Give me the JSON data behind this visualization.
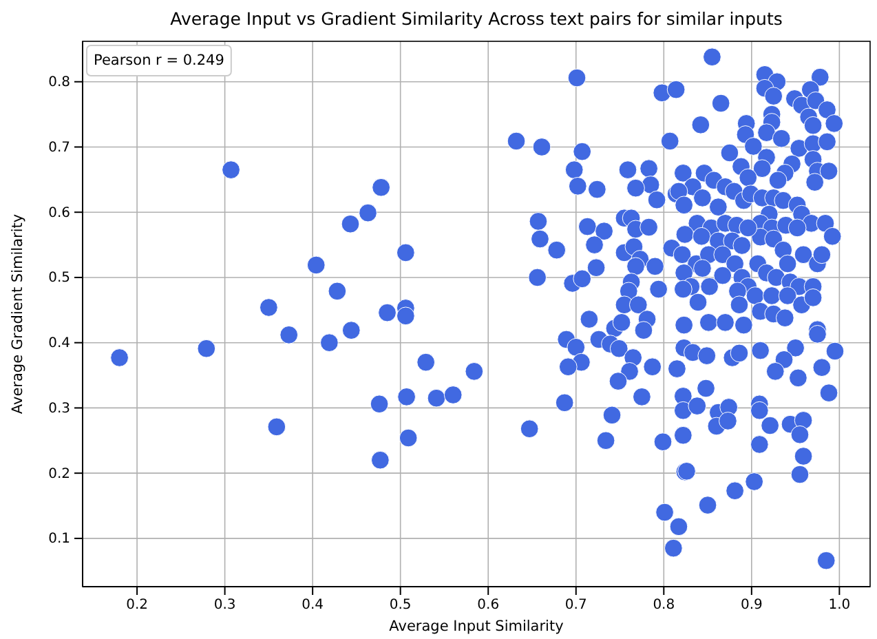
{
  "chart_data": {
    "type": "scatter",
    "title": "Average Input vs Gradient Similarity Across text pairs for similar inputs",
    "xlabel": "Average Input Similarity",
    "ylabel": "Average Gradient Similarity",
    "annotations": [
      "Pearson r = 0.249"
    ],
    "xlim": [
      0.138,
      1.035
    ],
    "ylim": [
      0.026,
      0.862
    ],
    "xticks": [
      {
        "value": 0.2,
        "label": "0.2"
      },
      {
        "value": 0.3,
        "label": "0.3"
      },
      {
        "value": 0.4,
        "label": "0.4"
      },
      {
        "value": 0.5,
        "label": "0.5"
      },
      {
        "value": 0.6,
        "label": "0.6"
      },
      {
        "value": 0.7,
        "label": "0.7"
      },
      {
        "value": 0.8,
        "label": "0.8"
      },
      {
        "value": 0.9,
        "label": "0.9"
      },
      {
        "value": 1.0,
        "label": "1.0"
      }
    ],
    "yticks": [
      0.1,
      0.2,
      0.3,
      0.4,
      0.5,
      0.6,
      0.7,
      0.8
    ],
    "grid": true,
    "marker": "circle",
    "series": [
      {
        "color": "#4169e1",
        "x": [
          0.18,
          0.279,
          0.307,
          0.35,
          0.359,
          0.373,
          0.404,
          0.419,
          0.428,
          0.443,
          0.444,
          0.463,
          0.478,
          0.476,
          0.477,
          0.485,
          0.506,
          0.506,
          0.506,
          0.507,
          0.509,
          0.529,
          0.541,
          0.56,
          0.584,
          0.701,
          0.798,
          0.814,
          0.632,
          0.661,
          0.707,
          0.807,
          0.698,
          0.702,
          0.724,
          0.759,
          0.783,
          0.785,
          0.792,
          0.768,
          0.814,
          0.657,
          0.659,
          0.678,
          0.713,
          0.732,
          0.721,
          0.755,
          0.763,
          0.768,
          0.783,
          0.755,
          0.766,
          0.773,
          0.768,
          0.809,
          0.79,
          0.794,
          0.656,
          0.696,
          0.707,
          0.723,
          0.763,
          0.76,
          0.755,
          0.771,
          0.715,
          0.781,
          0.777,
          0.744,
          0.752,
          0.689,
          0.7,
          0.706,
          0.691,
          0.726,
          0.739,
          0.749,
          0.765,
          0.761,
          0.748,
          0.787,
          0.775,
          0.687,
          0.741,
          0.647,
          0.734,
          0.799,
          0.824,
          0.801,
          0.817,
          0.811,
          0.855,
          0.915,
          0.929,
          0.915,
          0.925,
          0.978,
          0.967,
          0.949,
          0.957,
          0.973,
          0.986,
          0.965,
          0.994,
          0.97,
          0.865,
          0.842,
          0.894,
          0.893,
          0.923,
          0.923,
          0.917,
          0.934,
          0.954,
          0.97,
          0.986,
          0.875,
          0.902,
          0.917,
          0.912,
          0.946,
          0.938,
          0.93,
          0.97,
          0.975,
          0.988,
          0.972,
          0.888,
          0.896,
          0.846,
          0.857,
          0.87,
          0.88,
          0.891,
          0.899,
          0.822,
          0.833,
          0.817,
          0.844,
          0.823,
          0.862,
          0.912,
          0.925,
          0.936,
          0.952,
          0.957,
          0.968,
          0.984,
          0.992,
          0.92,
          0.91,
          0.923,
          0.939,
          0.952,
          0.91,
          0.925,
          0.838,
          0.854,
          0.87,
          0.883,
          0.896,
          0.824,
          0.843,
          0.862,
          0.878,
          0.889,
          0.821,
          0.837,
          0.851,
          0.867,
          0.936,
          0.941,
          0.959,
          0.975,
          0.98,
          0.907,
          0.917,
          0.928,
          0.881,
          0.889,
          0.896,
          0.867,
          0.844,
          0.823,
          0.944,
          0.954,
          0.97,
          0.831,
          0.852,
          0.884,
          0.904,
          0.923,
          0.941,
          0.957,
          0.97,
          0.839,
          0.886,
          0.91,
          0.925,
          0.938,
          0.851,
          0.87,
          0.891,
          0.823,
          0.975,
          0.975,
          0.823,
          0.833,
          0.849,
          0.878,
          0.886,
          0.91,
          0.95,
          0.937,
          0.927,
          0.953,
          0.98,
          0.995,
          0.815,
          0.988,
          0.848,
          0.822,
          0.822,
          0.838,
          0.862,
          0.86,
          0.874,
          0.873,
          0.909,
          0.909,
          0.921,
          0.944,
          0.959,
          0.955,
          0.822,
          0.909,
          0.959,
          0.955,
          0.826,
          0.903,
          0.881,
          0.85,
          0.985,
          0.822
        ],
        "values": [
          0.377,
          0.391,
          0.665,
          0.454,
          0.271,
          0.412,
          0.519,
          0.4,
          0.479,
          0.582,
          0.419,
          0.599,
          0.638,
          0.306,
          0.22,
          0.446,
          0.538,
          0.453,
          0.441,
          0.317,
          0.254,
          0.37,
          0.315,
          0.32,
          0.356,
          0.806,
          0.783,
          0.788,
          0.709,
          0.7,
          0.693,
          0.709,
          0.665,
          0.64,
          0.635,
          0.665,
          0.667,
          0.642,
          0.619,
          0.637,
          0.628,
          0.586,
          0.559,
          0.542,
          0.578,
          0.571,
          0.55,
          0.591,
          0.591,
          0.574,
          0.577,
          0.538,
          0.547,
          0.528,
          0.517,
          0.545,
          0.517,
          0.482,
          0.5,
          0.491,
          0.498,
          0.515,
          0.493,
          0.479,
          0.458,
          0.458,
          0.436,
          0.436,
          0.419,
          0.422,
          0.431,
          0.405,
          0.393,
          0.37,
          0.363,
          0.405,
          0.398,
          0.391,
          0.377,
          0.356,
          0.341,
          0.363,
          0.317,
          0.308,
          0.289,
          0.268,
          0.25,
          0.248,
          0.202,
          0.14,
          0.118,
          0.085,
          0.838,
          0.811,
          0.8,
          0.79,
          0.778,
          0.807,
          0.788,
          0.774,
          0.764,
          0.771,
          0.757,
          0.746,
          0.736,
          0.733,
          0.767,
          0.734,
          0.736,
          0.719,
          0.75,
          0.738,
          0.722,
          0.713,
          0.698,
          0.705,
          0.708,
          0.691,
          0.701,
          0.684,
          0.667,
          0.674,
          0.66,
          0.649,
          0.681,
          0.663,
          0.663,
          0.646,
          0.67,
          0.653,
          0.66,
          0.649,
          0.639,
          0.632,
          0.618,
          0.628,
          0.66,
          0.639,
          0.632,
          0.622,
          0.611,
          0.608,
          0.622,
          0.622,
          0.618,
          0.611,
          0.597,
          0.583,
          0.583,
          0.563,
          0.597,
          0.583,
          0.576,
          0.58,
          0.576,
          0.562,
          0.559,
          0.583,
          0.576,
          0.583,
          0.58,
          0.576,
          0.566,
          0.563,
          0.556,
          0.556,
          0.549,
          0.535,
          0.521,
          0.535,
          0.535,
          0.542,
          0.521,
          0.535,
          0.521,
          0.535,
          0.521,
          0.507,
          0.5,
          0.521,
          0.5,
          0.486,
          0.503,
          0.514,
          0.507,
          0.493,
          0.486,
          0.486,
          0.486,
          0.486,
          0.479,
          0.472,
          0.472,
          0.472,
          0.458,
          0.469,
          0.462,
          0.458,
          0.448,
          0.444,
          0.438,
          0.431,
          0.431,
          0.427,
          0.427,
          0.42,
          0.413,
          0.392,
          0.385,
          0.38,
          0.377,
          0.384,
          0.388,
          0.392,
          0.374,
          0.356,
          0.346,
          0.362,
          0.387,
          0.36,
          0.323,
          0.33,
          0.318,
          0.296,
          0.303,
          0.293,
          0.272,
          0.301,
          0.28,
          0.306,
          0.296,
          0.273,
          0.275,
          0.281,
          0.259,
          0.258,
          0.244,
          0.226,
          0.198,
          0.203,
          0.187,
          0.173,
          0.151,
          0.066,
          0.482
        ]
      }
    ]
  }
}
